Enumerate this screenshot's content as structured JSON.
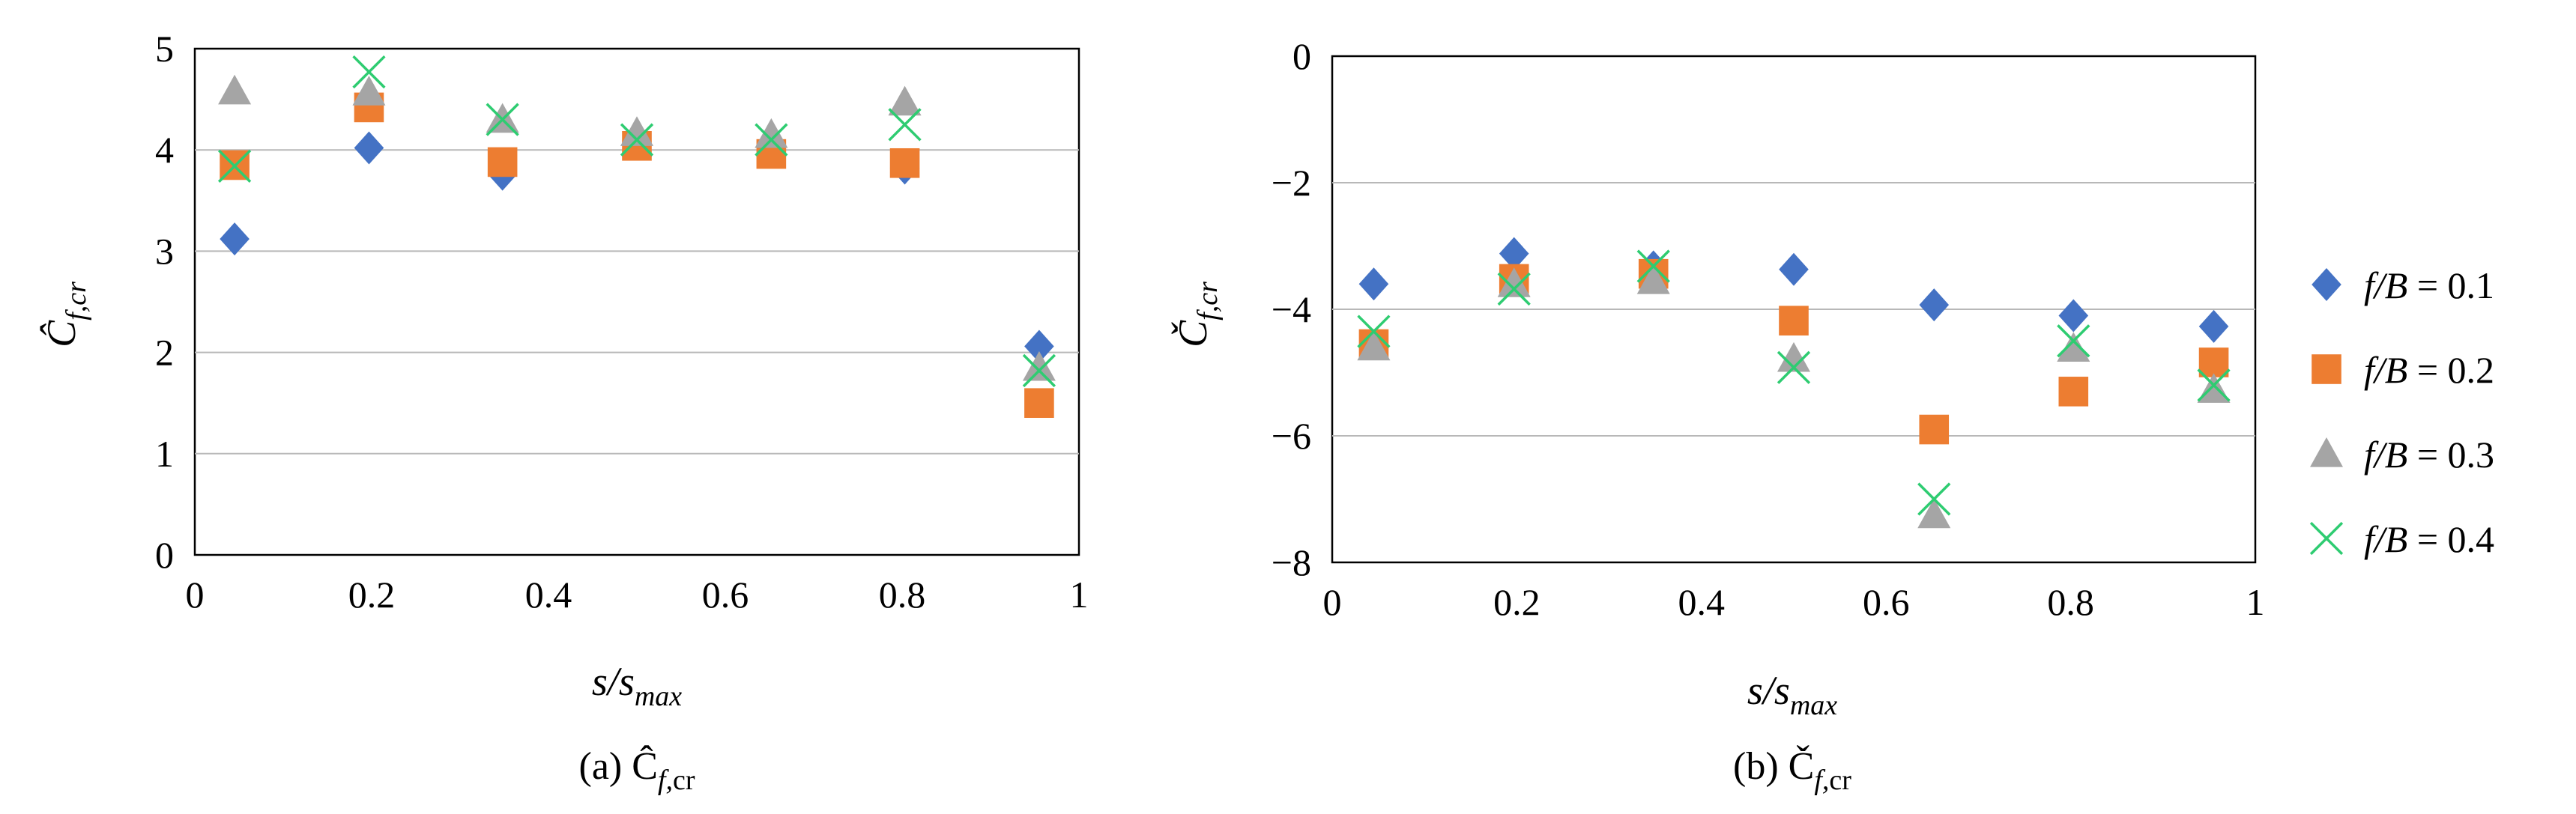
{
  "chart_data": [
    {
      "type": "scatter",
      "caption": "(a) Ĉ",
      "caption_sub": "f,",
      "caption_sub2": "cr",
      "ylabel": "Ĉ",
      "ylabel_sub": "f,cr",
      "xlabel": "s/s",
      "xlabel_sub": "max",
      "xlim": [
        0,
        1
      ],
      "ylim": [
        0,
        5
      ],
      "x_ticks": [
        "0",
        "0.2",
        "0.4",
        "0.6",
        "0.8",
        "1"
      ],
      "y_ticks": [
        "0",
        "1",
        "2",
        "3",
        "4",
        "5"
      ],
      "grid": "horizontal",
      "series": [
        {
          "name": "f/B = 0.1",
          "x": [
            0.045,
            0.197,
            0.348,
            0.5,
            0.652,
            0.803,
            0.955
          ],
          "y": [
            3.12,
            4.02,
            3.76,
            4.08,
            4.02,
            3.82,
            2.06
          ]
        },
        {
          "name": "f/B = 0.2",
          "x": [
            0.045,
            0.197,
            0.348,
            0.5,
            0.652,
            0.803,
            0.955
          ],
          "y": [
            3.85,
            4.42,
            3.88,
            4.04,
            3.96,
            3.87,
            1.5
          ]
        },
        {
          "name": "f/B = 0.3",
          "x": [
            0.045,
            0.197,
            0.348,
            0.5,
            0.652,
            0.803,
            0.955
          ],
          "y": [
            4.58,
            4.57,
            4.3,
            4.17,
            4.15,
            4.47,
            1.85
          ]
        },
        {
          "name": "f/B = 0.4",
          "x": [
            0.045,
            0.197,
            0.348,
            0.5,
            0.652,
            0.803,
            0.955
          ],
          "y": [
            3.84,
            4.77,
            4.3,
            4.1,
            4.1,
            4.25,
            1.82
          ]
        }
      ]
    },
    {
      "type": "scatter",
      "caption": "(b) Č",
      "caption_sub": "f,",
      "caption_sub2": "cr",
      "ylabel": "Č",
      "ylabel_sub": "f,cr",
      "xlabel": "s/s",
      "xlabel_sub": "max",
      "xlim": [
        0,
        1
      ],
      "ylim": [
        -8,
        0
      ],
      "x_ticks": [
        "0",
        "0.2",
        "0.4",
        "0.6",
        "0.8",
        "1"
      ],
      "y_ticks": [
        "−8",
        "−6",
        "−4",
        "−2",
        "0"
      ],
      "grid": "horizontal",
      "series": [
        {
          "name": "f/B = 0.1",
          "x": [
            0.045,
            0.197,
            0.348,
            0.5,
            0.652,
            0.803,
            0.955
          ],
          "y": [
            -3.6,
            -3.12,
            -3.33,
            -3.37,
            -3.93,
            -4.1,
            -4.27
          ]
        },
        {
          "name": "f/B = 0.2",
          "x": [
            0.045,
            0.197,
            0.348,
            0.5,
            0.652,
            0.803,
            0.955
          ],
          "y": [
            -4.55,
            -3.52,
            -3.44,
            -4.18,
            -5.9,
            -5.3,
            -4.84
          ]
        },
        {
          "name": "f/B = 0.3",
          "x": [
            0.045,
            0.197,
            0.348,
            0.5,
            0.652,
            0.803,
            0.955
          ],
          "y": [
            -4.6,
            -3.6,
            -3.55,
            -4.78,
            -7.25,
            -4.62,
            -5.27
          ]
        },
        {
          "name": "f/B = 0.4",
          "x": [
            0.045,
            0.197,
            0.348,
            0.5,
            0.652,
            0.803,
            0.955
          ],
          "y": [
            -4.35,
            -3.68,
            -3.32,
            -4.92,
            -7.0,
            -4.5,
            -5.2
          ]
        }
      ]
    }
  ],
  "legend": {
    "position": "right",
    "entries": [
      {
        "label": "f/B = 0.1",
        "marker": "diamond",
        "color": "#4472C4"
      },
      {
        "label": "f/B = 0.2",
        "marker": "square",
        "color": "#ED7D31"
      },
      {
        "label": "f/B = 0.3",
        "marker": "triangle",
        "color": "#A5A5A5"
      },
      {
        "label": "f/B = 0.4",
        "marker": "cross",
        "color": "#2ECC71"
      }
    ]
  },
  "colors": {
    "axis": "#000000",
    "grid": "#b8b8b8"
  }
}
